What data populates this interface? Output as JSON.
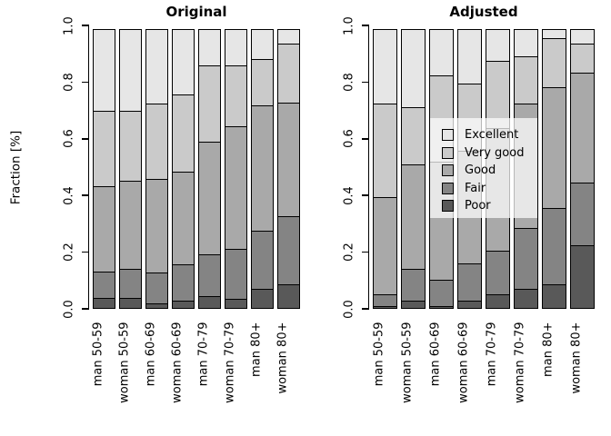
{
  "figure": {
    "background": "#FFFFFF"
  },
  "axis": {
    "y_label": "Fraction [%]",
    "y_tick_labels": [
      "0.0",
      "0.2",
      "0.4",
      "0.6",
      "0.8",
      "1.0"
    ]
  },
  "legend": {
    "position": "inside-right-panel",
    "items": [
      {
        "label": "Excellent",
        "color": "#E6E6E6"
      },
      {
        "label": "Very good",
        "color": "#CACACA"
      },
      {
        "label": "Good",
        "color": "#A9A9A9"
      },
      {
        "label": "Fair",
        "color": "#848484"
      },
      {
        "label": "Poor",
        "color": "#595959"
      }
    ]
  },
  "chart_data": [
    {
      "type": "bar",
      "stacked": true,
      "title": "Original",
      "ylabel": "Fraction [%]",
      "ylim": [
        0,
        1
      ],
      "yticks": [
        0,
        0.2,
        0.4,
        0.6,
        0.8,
        1.0
      ],
      "grid": false,
      "categories": [
        "man 50-59",
        "woman 50-59",
        "man 60-69",
        "woman 60-69",
        "man 70-79",
        "woman 70-79",
        "man 80+",
        "woman 80+"
      ],
      "series": [
        {
          "name": "Poor",
          "color": "#595959",
          "values": [
            0.04,
            0.04,
            0.02,
            0.03,
            0.045,
            0.035,
            0.07,
            0.085
          ]
        },
        {
          "name": "Fair",
          "color": "#848484",
          "values": [
            0.095,
            0.105,
            0.11,
            0.13,
            0.15,
            0.18,
            0.21,
            0.245
          ]
        },
        {
          "name": "Good",
          "color": "#A9A9A9",
          "values": [
            0.305,
            0.315,
            0.335,
            0.33,
            0.4,
            0.435,
            0.445,
            0.405
          ]
        },
        {
          "name": "Very good",
          "color": "#CACACA",
          "values": [
            0.27,
            0.25,
            0.27,
            0.275,
            0.275,
            0.22,
            0.165,
            0.21
          ]
        },
        {
          "name": "Excellent",
          "color": "#E6E6E6",
          "values": [
            0.29,
            0.29,
            0.265,
            0.235,
            0.13,
            0.13,
            0.11,
            0.055
          ]
        }
      ]
    },
    {
      "type": "bar",
      "stacked": true,
      "title": "Adjusted",
      "ylabel": "",
      "ylim": [
        0,
        1
      ],
      "yticks": [
        0,
        0.2,
        0.4,
        0.6,
        0.8,
        1.0
      ],
      "grid": false,
      "categories": [
        "man 50-59",
        "woman 50-59",
        "man 60-69",
        "woman 60-69",
        "man 70-79",
        "woman 70-79",
        "man 80+",
        "woman 80+"
      ],
      "series": [
        {
          "name": "Poor",
          "color": "#595959",
          "values": [
            0.01,
            0.03,
            0.01,
            0.03,
            0.05,
            0.07,
            0.085,
            0.225
          ]
        },
        {
          "name": "Fair",
          "color": "#848484",
          "values": [
            0.045,
            0.115,
            0.095,
            0.135,
            0.16,
            0.22,
            0.275,
            0.225
          ]
        },
        {
          "name": "Good",
          "color": "#A9A9A9",
          "values": [
            0.345,
            0.37,
            0.42,
            0.4,
            0.435,
            0.44,
            0.43,
            0.39
          ]
        },
        {
          "name": "Very good",
          "color": "#CACACA",
          "values": [
            0.335,
            0.205,
            0.31,
            0.24,
            0.24,
            0.17,
            0.175,
            0.105
          ]
        },
        {
          "name": "Excellent",
          "color": "#E6E6E6",
          "values": [
            0.265,
            0.28,
            0.165,
            0.195,
            0.115,
            0.1,
            0.035,
            0.055
          ]
        }
      ]
    }
  ]
}
